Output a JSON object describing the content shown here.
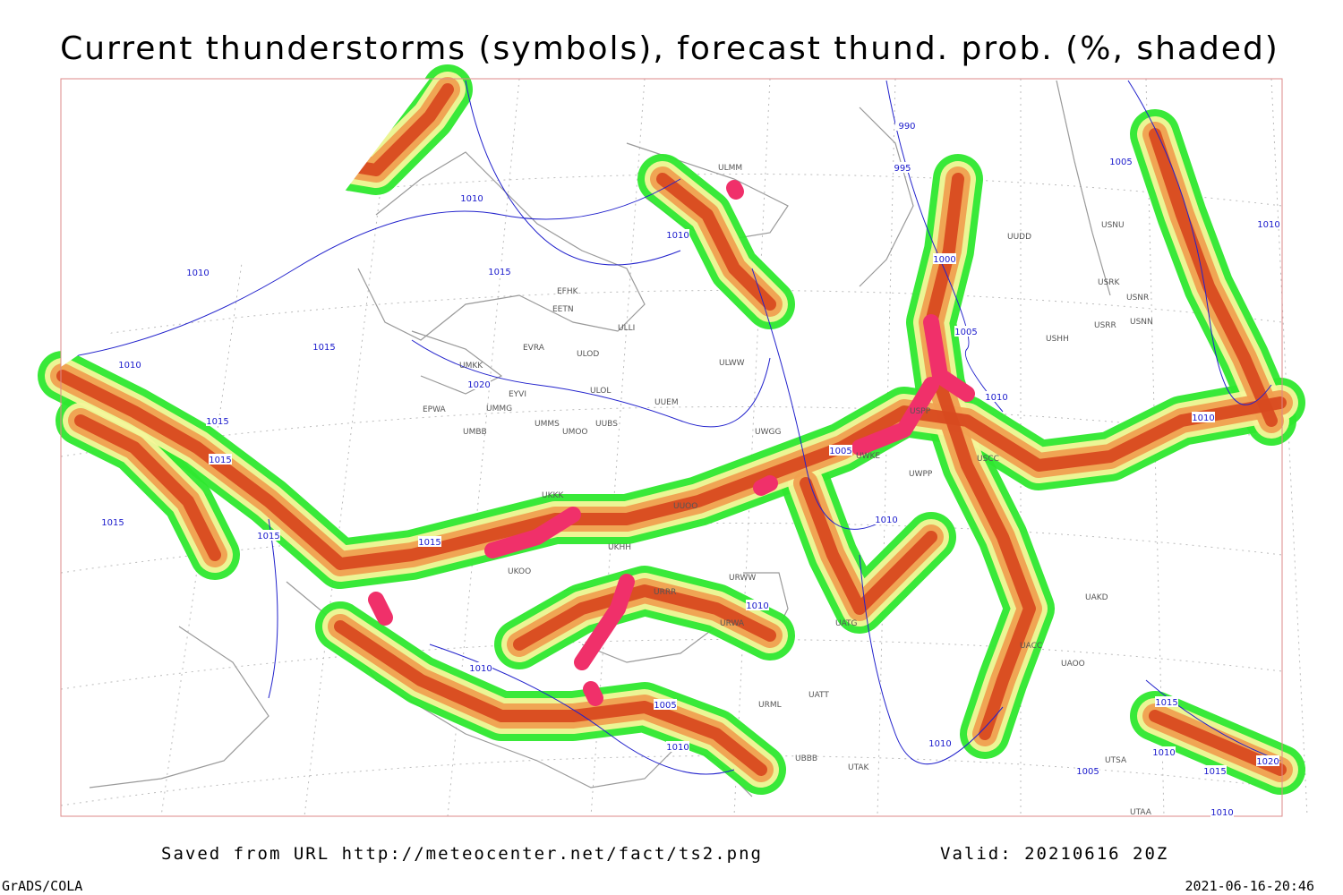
{
  "title": "Current thunderstorms (symbols), forecast thund. prob. (%, shaded)",
  "footer": {
    "source": "Saved from URL http://meteocenter.net/fact/ts2.png",
    "valid": "Valid: 20210616 20Z",
    "software": "GrADS/COLA",
    "timestamp": "2021-06-16-20:46"
  },
  "isobar_labels": [
    "990",
    "995",
    "1010",
    "1010",
    "1015",
    "1010",
    "1000",
    "1005",
    "1005",
    "1010",
    "1010",
    "1015",
    "1020",
    "1015",
    "1015",
    "1015",
    "1015",
    "1005",
    "1010",
    "1010",
    "1015",
    "1005",
    "1010",
    "1005",
    "1010",
    "1010",
    "1010",
    "1015",
    "1015",
    "1020",
    "1010",
    "1010",
    "1010"
  ],
  "stations": [
    "ULMM",
    "UUDD",
    "USNU",
    "USRK",
    "USNR",
    "USRR",
    "USNN",
    "USHH",
    "EFHK",
    "EETN",
    "ULLI",
    "EVRA",
    "ULOD",
    "UMKK",
    "ULOL",
    "EYVI",
    "EPWA",
    "UMMG",
    "UUEM",
    "ULWW",
    "UMMS",
    "UUBS",
    "UMOO",
    "UMBB",
    "UWGG",
    "UWKE",
    "USPP",
    "USCC",
    "UWPP",
    "UKKK",
    "UUOO",
    "UKHH",
    "UKOO",
    "URWW",
    "URRR",
    "URWA",
    "UATG",
    "UATT",
    "UAKD",
    "UACC",
    "UAOO",
    "UTAK",
    "UBBB",
    "URML",
    "UTSA",
    "UTAA"
  ]
}
